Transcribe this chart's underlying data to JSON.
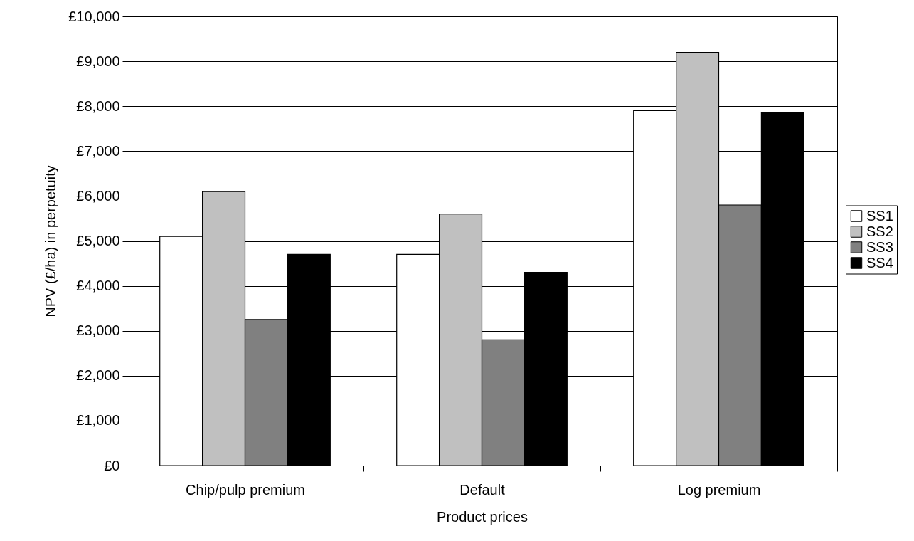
{
  "chart_data": {
    "type": "bar",
    "xlabel": "Product prices",
    "ylabel": "NPV (£/ha) in perpetuity",
    "categories": [
      "Chip/pulp premium",
      "Default",
      "Log premium"
    ],
    "series": [
      {
        "name": "SS1",
        "color": "#ffffff",
        "values": [
          5100,
          4700,
          7900
        ]
      },
      {
        "name": "SS2",
        "color": "#c0c0c0",
        "values": [
          6100,
          5600,
          9200
        ]
      },
      {
        "name": "SS3",
        "color": "#808080",
        "values": [
          3250,
          2800,
          5800
        ]
      },
      {
        "name": "SS4",
        "color": "#000000",
        "values": [
          4700,
          4300,
          7850
        ]
      }
    ],
    "ylim": [
      0,
      10000
    ],
    "yticks": [
      {
        "value": 0,
        "label": "£0"
      },
      {
        "value": 1000,
        "label": "£1,000"
      },
      {
        "value": 2000,
        "label": "£2,000"
      },
      {
        "value": 3000,
        "label": "£3,000"
      },
      {
        "value": 4000,
        "label": "£4,000"
      },
      {
        "value": 5000,
        "label": "£5,000"
      },
      {
        "value": 6000,
        "label": "£6,000"
      },
      {
        "value": 7000,
        "label": "£7,000"
      },
      {
        "value": 8000,
        "label": "£8,000"
      },
      {
        "value": 9000,
        "label": "£9,000"
      },
      {
        "value": 10000,
        "label": "£10,000"
      }
    ],
    "grid": "y",
    "legend": "right"
  }
}
